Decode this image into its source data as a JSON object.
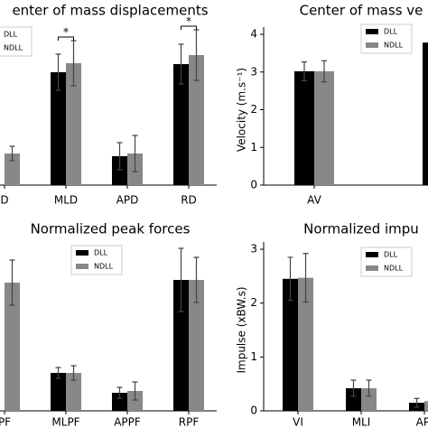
{
  "chart_data": [
    {
      "type": "bar",
      "title": "enter of mass displacements",
      "categories": [
        "D",
        "MLD",
        "APD",
        "RD"
      ],
      "ylim": [
        0,
        150
      ],
      "series": [
        {
          "name": "DLL",
          "color": "#000000",
          "values": [
            null,
            125,
            32,
            134
          ],
          "errors": [
            null,
            20,
            15,
            22
          ]
        },
        {
          "name": "NDLL",
          "color": "#888888",
          "values": [
            35,
            135,
            35,
            144
          ],
          "errors": [
            8,
            25,
            20,
            28
          ]
        }
      ],
      "annotations": [
        {
          "text": "*",
          "category": 1
        },
        {
          "text": "*",
          "category": 3
        }
      ]
    },
    {
      "type": "bar",
      "title": "Center of mass ve",
      "ylabel": "Velocity (m.s⁻¹)",
      "categories": [
        "AV",
        null
      ],
      "ylim": [
        0,
        4
      ],
      "yticks": [
        0,
        1,
        2,
        3,
        4
      ],
      "series": [
        {
          "name": "DLL",
          "color": "#000000",
          "values": [
            3.02,
            3.78
          ],
          "errors": [
            0.25,
            null
          ]
        },
        {
          "name": "NDLL",
          "color": "#888888",
          "values": [
            3.02,
            null
          ],
          "errors": [
            0.28,
            null
          ]
        }
      ]
    },
    {
      "type": "bar",
      "title": "Normalized peak forces",
      "categories": [
        "PF",
        "MLPF",
        "APPF",
        "RPF"
      ],
      "ylim": [
        0,
        150
      ],
      "series": [
        {
          "name": "DLL",
          "color": "#000000",
          "values": [
            null,
            42,
            20,
            145
          ],
          "errors": [
            null,
            6,
            6,
            35
          ]
        },
        {
          "name": "NDLL",
          "color": "#888888",
          "values": [
            142,
            42,
            22,
            145
          ],
          "errors": [
            25,
            8,
            10,
            25
          ]
        }
      ]
    },
    {
      "type": "bar",
      "title": "Normalized impu",
      "ylabel": "Impulse (xBW.s)",
      "categories": [
        "VI",
        "MLI",
        "APl"
      ],
      "ylim": [
        0,
        3
      ],
      "yticks": [
        0,
        1,
        2,
        3
      ],
      "series": [
        {
          "name": "DLL",
          "color": "#000000",
          "values": [
            2.45,
            0.42,
            0.15
          ],
          "errors": [
            0.4,
            0.15,
            0.08
          ]
        },
        {
          "name": "NDLL",
          "color": "#888888",
          "values": [
            2.47,
            0.42,
            0.18
          ],
          "errors": [
            0.45,
            0.15,
            0.1
          ]
        }
      ]
    }
  ]
}
